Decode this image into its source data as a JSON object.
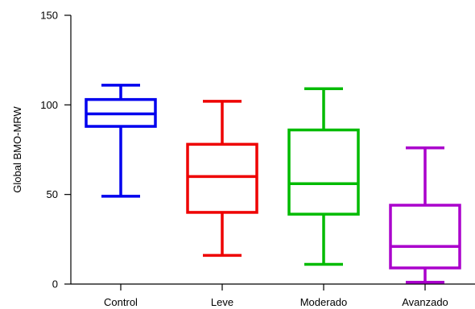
{
  "chart_data": {
    "type": "box",
    "title": "",
    "xlabel": "",
    "ylabel": "Global BMO-MRW",
    "ylim": [
      0,
      150
    ],
    "yticks": [
      0,
      50,
      100,
      150
    ],
    "categories": [
      "Control",
      "Leve",
      "Moderado",
      "Avanzado"
    ],
    "boxes": [
      {
        "category": "Control",
        "min": 49,
        "q1": 88,
        "median": 95,
        "q3": 103,
        "max": 111,
        "color": "#0000ee"
      },
      {
        "category": "Leve",
        "min": 16,
        "q1": 40,
        "median": 60,
        "q3": 78,
        "max": 102,
        "color": "#ee0000"
      },
      {
        "category": "Moderado",
        "min": 11,
        "q1": 39,
        "median": 56,
        "q3": 86,
        "max": 109,
        "color": "#00bb00"
      },
      {
        "category": "Avanzado",
        "min": 1,
        "q1": 9,
        "median": 21,
        "q3": 44,
        "max": 76,
        "color": "#aa00cc"
      }
    ]
  }
}
